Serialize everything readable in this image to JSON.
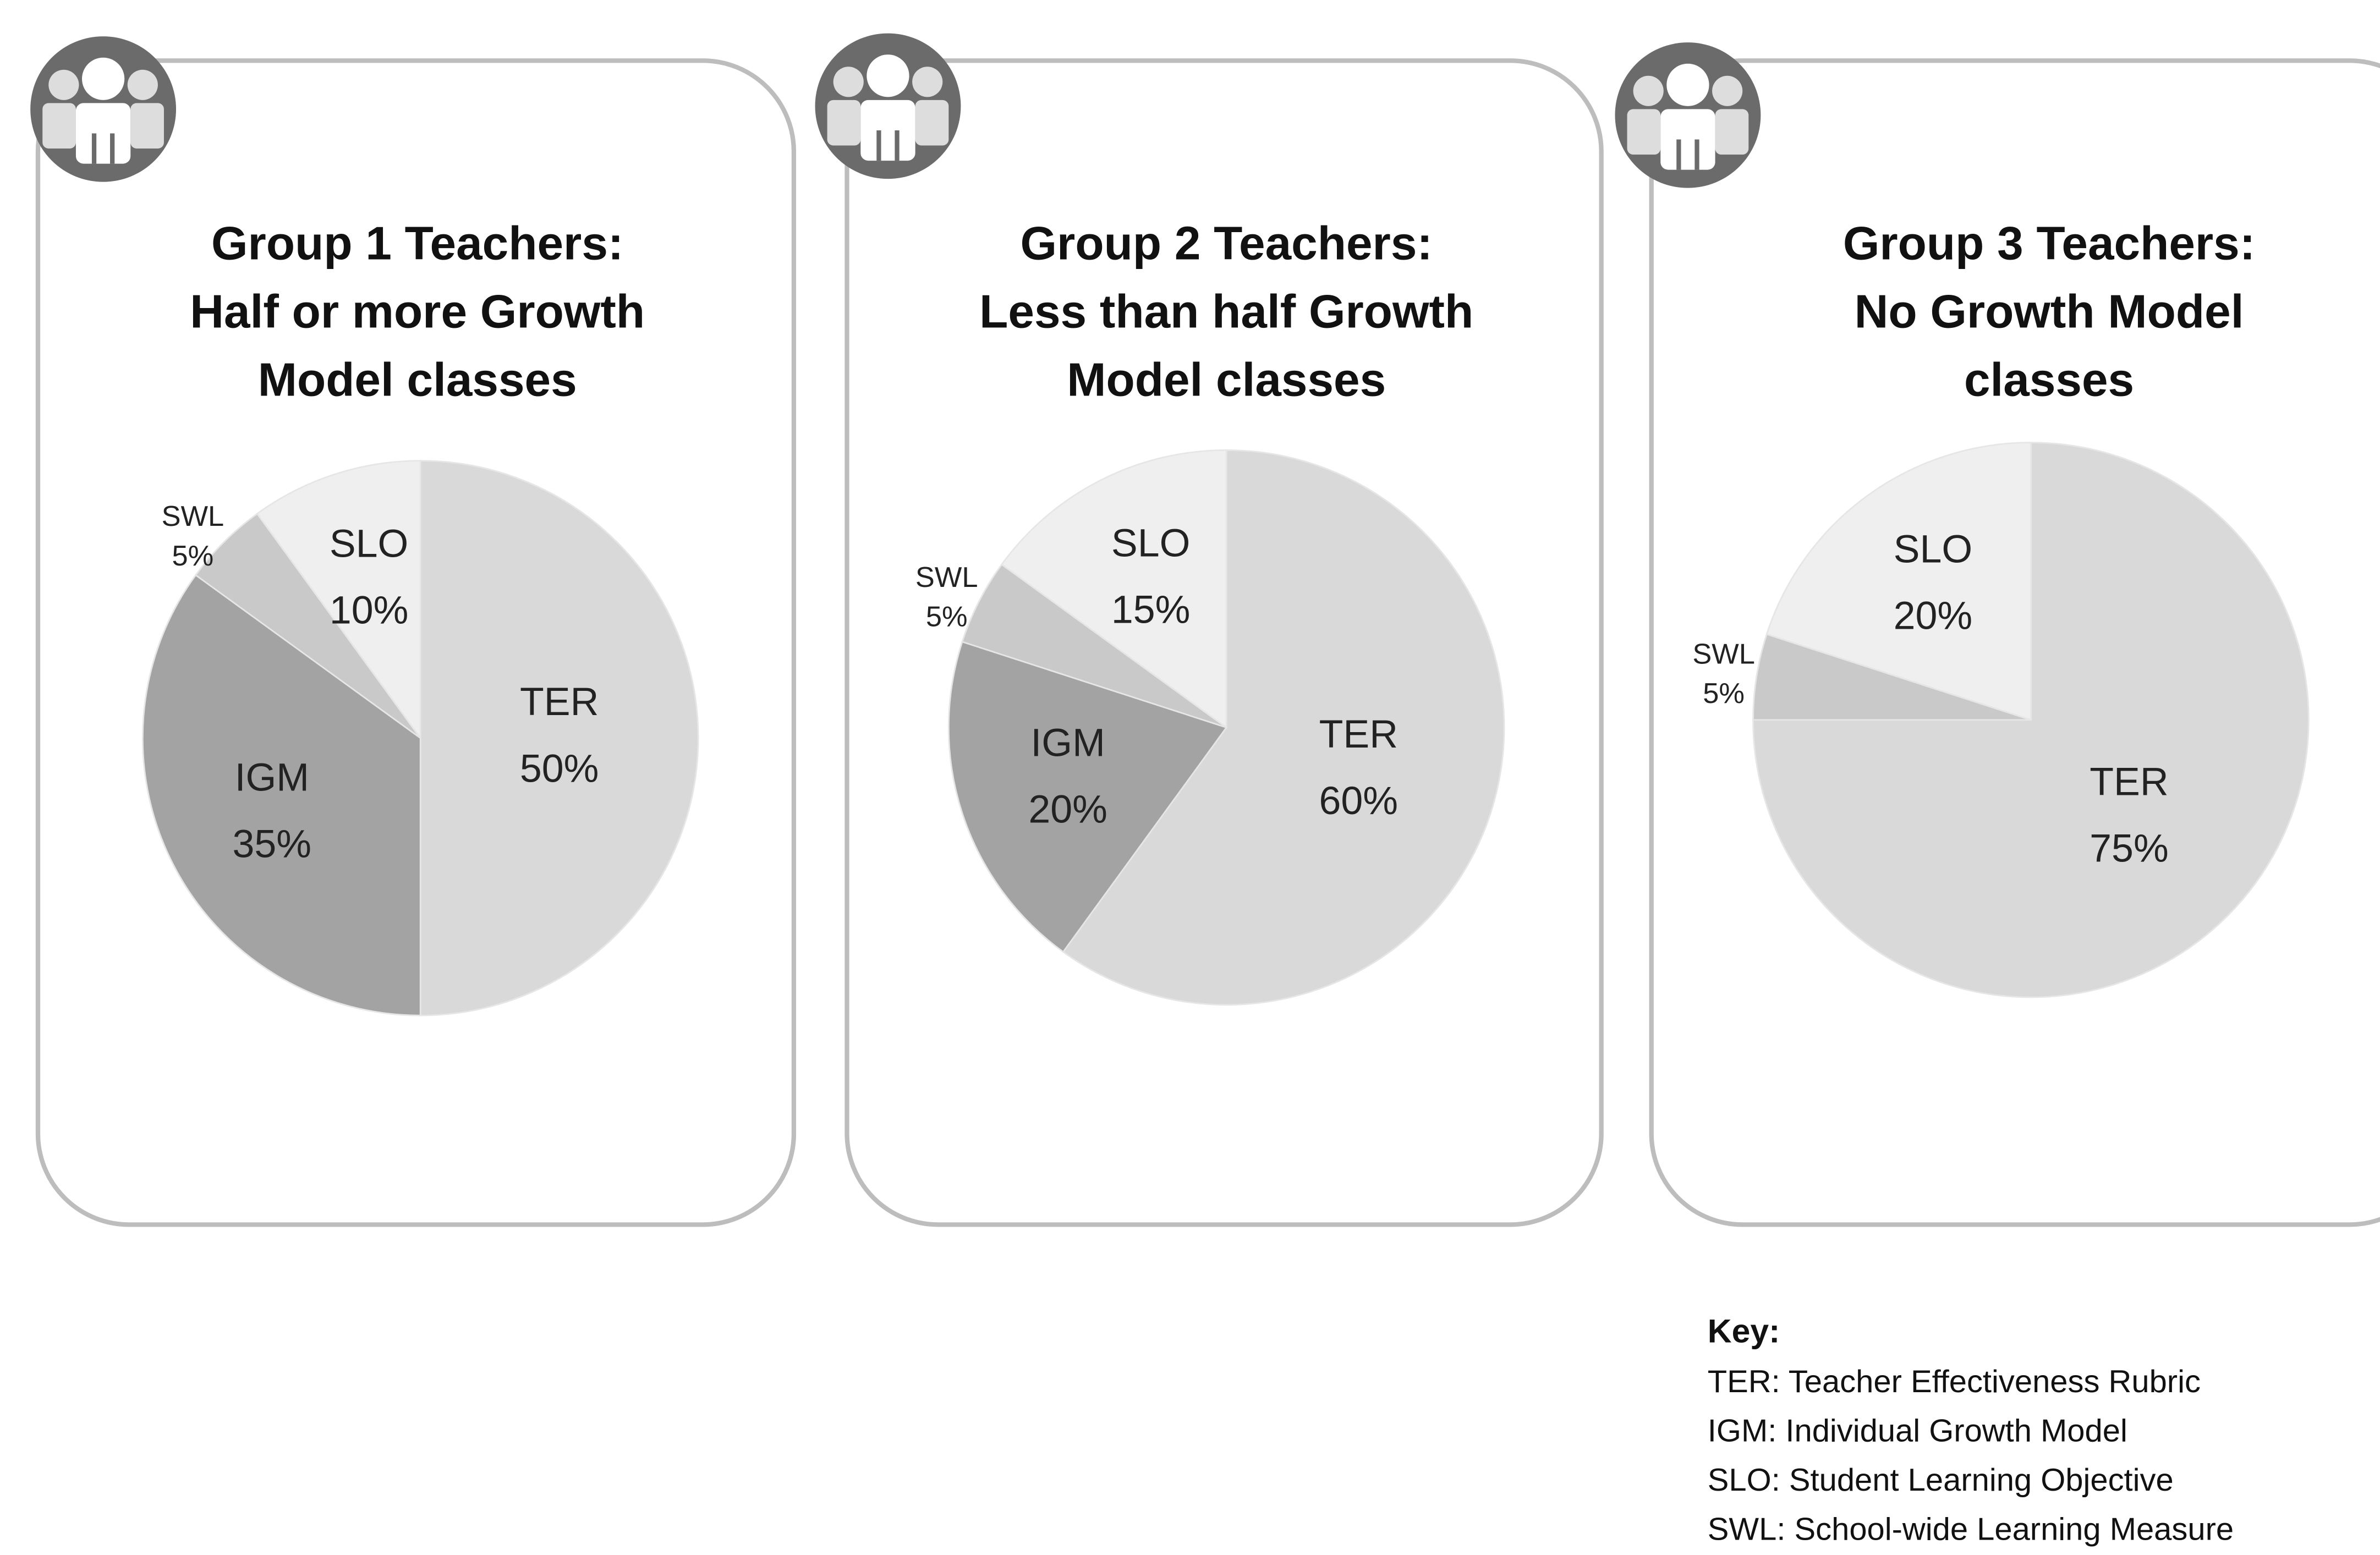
{
  "chart_data": [
    {
      "type": "pie",
      "title": [
        "Group 1 Teachers:",
        "Half or more Growth",
        "Model classes"
      ],
      "categories": [
        "TER",
        "IGM",
        "SWL",
        "SLO"
      ],
      "values": [
        50,
        35,
        5,
        10
      ],
      "value_labels": [
        "50%",
        "35%",
        "5%",
        "10%"
      ],
      "colors": [
        "#d9d9d9",
        "#a3a3a3",
        "#c9c9c9",
        "#efefef"
      ]
    },
    {
      "type": "pie",
      "title": [
        "Group 2 Teachers:",
        "Less than half Growth",
        "Model classes"
      ],
      "categories": [
        "TER",
        "IGM",
        "SWL",
        "SLO"
      ],
      "values": [
        60,
        20,
        5,
        15
      ],
      "value_labels": [
        "60%",
        "20%",
        "5%",
        "15%"
      ],
      "colors": [
        "#d9d9d9",
        "#a3a3a3",
        "#c9c9c9",
        "#efefef"
      ]
    },
    {
      "type": "pie",
      "title": [
        "Group 3 Teachers:",
        "No Growth Model",
        "classes"
      ],
      "categories": [
        "TER",
        "SWL",
        "SLO"
      ],
      "values": [
        75,
        5,
        20
      ],
      "value_labels": [
        "75%",
        "5%",
        "20%"
      ],
      "colors": [
        "#d9d9d9",
        "#c9c9c9",
        "#efefef"
      ]
    }
  ],
  "key": {
    "title": "Key:",
    "items": [
      "TER: Teacher Effectiveness Rubric",
      "IGM: Individual Growth Model",
      "SLO: Student Learning Objective",
      "SWL: School-wide Learning Measure"
    ]
  }
}
